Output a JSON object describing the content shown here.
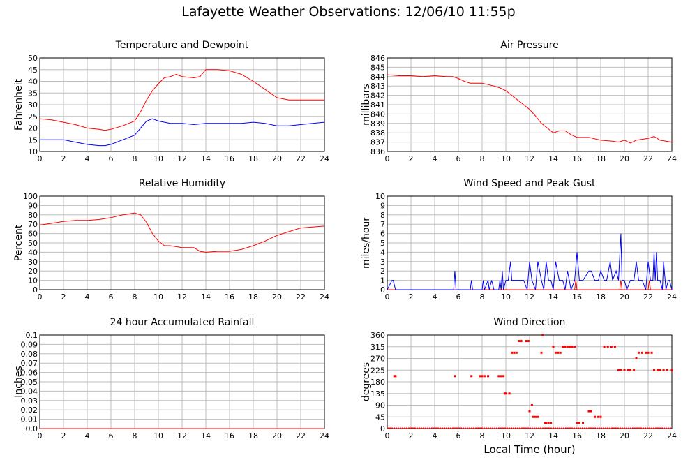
{
  "title": "Lafayette Weather Observations: 12/06/10 11:55p",
  "footer_xlabel": "Local Time (hour)",
  "chart_data": [
    {
      "id": "temp",
      "type": "line",
      "title": "Temperature and Dewpoint",
      "ylabel": "Fahrenheit",
      "xlabel": "",
      "xlim": [
        0,
        24
      ],
      "ylim": [
        10,
        50
      ],
      "xticks": [
        0,
        2,
        4,
        6,
        8,
        10,
        12,
        14,
        16,
        18,
        20,
        22,
        24
      ],
      "yticks": [
        10,
        15,
        20,
        25,
        30,
        35,
        40,
        45,
        50
      ],
      "grid": true,
      "series": [
        {
          "color": "#ff0000",
          "x": [
            0,
            1,
            2,
            3,
            4,
            5,
            5.5,
            6,
            7,
            8,
            8.5,
            9,
            9.5,
            10,
            10.5,
            11,
            11.5,
            12,
            13,
            13.5,
            14,
            15,
            16,
            17,
            18,
            19,
            20,
            21,
            22,
            23,
            24
          ],
          "y": [
            24,
            23.5,
            22.5,
            21.5,
            20,
            19.5,
            19,
            19.5,
            21,
            23,
            27,
            32,
            36,
            39,
            41.5,
            42,
            43,
            42,
            41.5,
            42,
            45,
            45,
            44.5,
            43,
            40,
            36.5,
            33,
            32,
            32,
            32,
            32
          ]
        },
        {
          "color": "#0000ff",
          "x": [
            0,
            1,
            2,
            3,
            4,
            5,
            5.5,
            6,
            7,
            8,
            8.5,
            9,
            9.5,
            10,
            11,
            12,
            13,
            14,
            15,
            16,
            17,
            18,
            19,
            20,
            21,
            22,
            23,
            24
          ],
          "y": [
            15,
            15,
            15,
            14,
            13,
            12.5,
            12.5,
            13,
            15,
            17,
            20,
            23,
            24,
            23,
            22,
            22,
            21.5,
            22,
            22,
            22,
            22,
            22.5,
            22,
            21,
            21,
            21.5,
            22,
            22.5
          ]
        }
      ]
    },
    {
      "id": "pressure",
      "type": "line",
      "title": "Air Pressure",
      "ylabel": "millibars",
      "xlabel": "",
      "xlim": [
        0,
        24
      ],
      "ylim": [
        836,
        846
      ],
      "xticks": [
        0,
        2,
        4,
        6,
        8,
        10,
        12,
        14,
        16,
        18,
        20,
        22,
        24
      ],
      "yticks": [
        836,
        837,
        838,
        839,
        840,
        841,
        842,
        843,
        844,
        845,
        846
      ],
      "grid": true,
      "series": [
        {
          "color": "#ff0000",
          "x": [
            0,
            1,
            2,
            3,
            4,
            5,
            5.5,
            6,
            6.5,
            7,
            8,
            9,
            9.5,
            10,
            10.5,
            11,
            11.5,
            12,
            12.5,
            13,
            13.5,
            14,
            14.5,
            15,
            15.5,
            16,
            17,
            18,
            19,
            19.5,
            20,
            20.5,
            21,
            22,
            22.5,
            23,
            24
          ],
          "y": [
            844.2,
            844.1,
            844.1,
            844,
            844.1,
            844,
            844,
            843.8,
            843.5,
            843.3,
            843.3,
            843,
            842.8,
            842.5,
            842,
            841.5,
            841,
            840.5,
            839.8,
            839,
            838.5,
            838,
            838.2,
            838.2,
            837.8,
            837.5,
            837.5,
            837.2,
            837.1,
            837,
            837.2,
            836.9,
            837.2,
            837.4,
            837.6,
            837.2,
            837
          ]
        }
      ]
    },
    {
      "id": "humidity",
      "type": "line",
      "title": "Relative Humidity",
      "ylabel": "Percent",
      "xlabel": "",
      "xlim": [
        0,
        24
      ],
      "ylim": [
        0,
        100
      ],
      "xticks": [
        0,
        2,
        4,
        6,
        8,
        10,
        12,
        14,
        16,
        18,
        20,
        22,
        24
      ],
      "yticks": [
        0,
        10,
        20,
        30,
        40,
        50,
        60,
        70,
        80,
        90,
        100
      ],
      "grid": true,
      "series": [
        {
          "color": "#ff0000",
          "x": [
            0,
            1,
            2,
            3,
            4,
            5,
            6,
            7,
            7.5,
            8,
            8.5,
            9,
            9.5,
            10,
            10.5,
            11,
            12,
            13,
            13.5,
            14,
            15,
            16,
            17,
            18,
            19,
            20,
            21,
            22,
            23,
            24
          ],
          "y": [
            69,
            71,
            73,
            74,
            74,
            75,
            77,
            80,
            81,
            82,
            80,
            72,
            60,
            52,
            47,
            47,
            45,
            45,
            41,
            40,
            41,
            41,
            43,
            47,
            52,
            58,
            62,
            66,
            67,
            68
          ]
        }
      ]
    },
    {
      "id": "wind",
      "type": "line",
      "title": "Wind Speed and Peak Gust",
      "ylabel": "miles/hour",
      "xlabel": "",
      "xlim": [
        0,
        24
      ],
      "ylim": [
        0,
        10
      ],
      "xticks": [
        0,
        2,
        4,
        6,
        8,
        10,
        12,
        14,
        16,
        18,
        20,
        22,
        24
      ],
      "yticks": [
        0,
        1,
        2,
        3,
        4,
        5,
        6,
        7,
        8,
        9,
        10
      ],
      "grid": true,
      "series": [
        {
          "color": "#ff0000",
          "x": [
            0,
            15.8,
            15.9,
            16,
            19.6,
            19.7,
            19.8,
            20,
            22,
            22.1,
            22.2,
            24
          ],
          "y": [
            0,
            0,
            1,
            0,
            0,
            1,
            0,
            0,
            0,
            1,
            0,
            0
          ]
        },
        {
          "color": "#0000ff",
          "x": [
            0,
            0.4,
            0.5,
            0.7,
            0.8,
            5.6,
            5.7,
            5.8,
            7,
            7.1,
            7.2,
            8,
            8.1,
            8.2,
            8.5,
            8.6,
            8.8,
            9,
            9.4,
            9.5,
            9.6,
            9.7,
            9.8,
            10,
            10.2,
            10.4,
            10.5,
            10.8,
            11,
            11.5,
            11.8,
            12,
            12.2,
            12.5,
            12.7,
            13,
            13.2,
            13.4,
            13.6,
            13.8,
            14,
            14.2,
            14.5,
            14.8,
            15,
            15.2,
            15.5,
            15.8,
            16,
            16.2,
            16.5,
            17,
            17.2,
            17.5,
            17.8,
            18,
            18.3,
            18.5,
            18.8,
            19,
            19.3,
            19.5,
            19.7,
            19.8,
            20,
            20.2,
            20.5,
            20.8,
            21,
            21.2,
            21.5,
            21.8,
            22,
            22.2,
            22.4,
            22.5,
            22.6,
            22.7,
            22.8,
            23,
            23.2,
            23.3,
            23.5,
            23.7,
            23.8,
            24
          ],
          "y": [
            0,
            1,
            1,
            0,
            0,
            0,
            2,
            0,
            0,
            1,
            0,
            0,
            1,
            0,
            1,
            0,
            1,
            0,
            0,
            1,
            0,
            2,
            0,
            1,
            1,
            3,
            1,
            1,
            1,
            1,
            0,
            3,
            1,
            0,
            3,
            1,
            0,
            3,
            1,
            1,
            0,
            3,
            1,
            1,
            0,
            2,
            0,
            1,
            4,
            1,
            1,
            2,
            2,
            1,
            1,
            2,
            1,
            1,
            3,
            1,
            2,
            1,
            6,
            1,
            1,
            0,
            1,
            1,
            3,
            1,
            1,
            0,
            3,
            1,
            1,
            4,
            1,
            4,
            1,
            1,
            0,
            3,
            0,
            1,
            1,
            0
          ]
        }
      ]
    },
    {
      "id": "rain",
      "type": "line",
      "title": "24 hour Accumulated Rainfall",
      "ylabel": "Inches",
      "xlabel": "",
      "xlim": [
        0,
        24
      ],
      "ylim": [
        0,
        0.1
      ],
      "xticks": [
        0,
        2,
        4,
        6,
        8,
        10,
        12,
        14,
        16,
        18,
        20,
        22,
        24
      ],
      "yticks": [
        "0.0",
        "0.01",
        "0.02",
        "0.03",
        "0.04",
        "0.05",
        "0.06",
        "0.07",
        "0.08",
        "0.09",
        "0.1"
      ],
      "grid": true,
      "series": [
        {
          "color": "#ff0000",
          "x": [
            0,
            24
          ],
          "y": [
            0,
            0
          ]
        }
      ]
    },
    {
      "id": "direction",
      "type": "scatter",
      "title": "Wind Direction",
      "ylabel": "degrees",
      "xlabel": "Local Time (hour)",
      "xlim": [
        0,
        24
      ],
      "ylim": [
        0,
        360
      ],
      "xticks": [
        0,
        2,
        4,
        6,
        8,
        10,
        12,
        14,
        16,
        18,
        20,
        22,
        24
      ],
      "yticks": [
        0,
        45,
        90,
        135,
        180,
        225,
        270,
        315,
        360
      ],
      "grid": true,
      "series": [
        {
          "color": "#ff0000",
          "x": [
            0.6,
            0.7,
            5.7,
            7.1,
            7.8,
            8,
            8.2,
            8.5,
            9.4,
            9.6,
            9.8,
            9.9,
            10,
            10.3,
            10.5,
            10.7,
            10.9,
            11.1,
            11.3,
            11.7,
            11.9,
            12,
            12.2,
            12.3,
            12.5,
            12.7,
            13,
            13.1,
            13.3,
            13.4,
            13.6,
            13.8,
            14,
            14.2,
            14.4,
            14.6,
            14.8,
            15,
            15.2,
            15.4,
            15.6,
            15.8,
            16,
            16.2,
            16.5,
            17,
            17.2,
            17.5,
            17.8,
            18,
            18.3,
            18.6,
            18.9,
            19.2,
            19.5,
            19.7,
            20,
            20.3,
            20.5,
            20.8,
            21,
            21.2,
            21.5,
            21.8,
            22,
            22.3,
            22.5,
            22.8,
            23,
            23.3,
            23.6,
            24
          ],
          "y": [
            202,
            202,
            202,
            202,
            202,
            202,
            202,
            202,
            202,
            202,
            202,
            135,
            135,
            135,
            292,
            292,
            292,
            337,
            337,
            337,
            337,
            67,
            90,
            45,
            45,
            45,
            292,
            360,
            22,
            22,
            22,
            22,
            315,
            292,
            292,
            292,
            315,
            315,
            315,
            315,
            315,
            315,
            22,
            22,
            22,
            67,
            67,
            45,
            45,
            45,
            315,
            315,
            315,
            315,
            225,
            225,
            225,
            225,
            225,
            225,
            270,
            292,
            292,
            292,
            292,
            292,
            225,
            225,
            225,
            225,
            225,
            225
          ]
        }
      ]
    }
  ]
}
